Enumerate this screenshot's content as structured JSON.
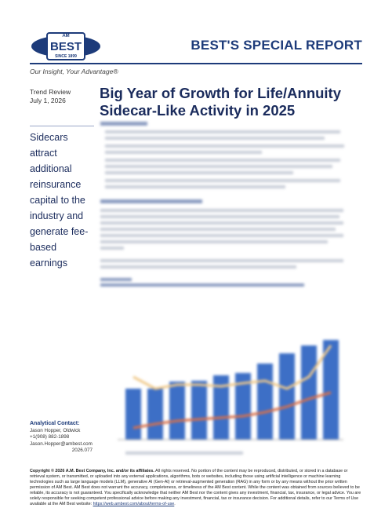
{
  "header": {
    "logo": "BEST",
    "logo_top": "AM",
    "logo_since": "SINCE 1899",
    "report": "BEST'S SPECIAL REPORT",
    "tagline": "Our Insight, Your Advantage®"
  },
  "meta": {
    "section": "Trend Review",
    "date": "July 1, 2026"
  },
  "title": "Big Year of Growth for Life/Annuity Sidecar-Like Activity in 2025",
  "sidebar": "Sidecars attract additional reinsurance capital to the industry and generate fee-based earnings",
  "contact": {
    "heading": "Analytical Contact:",
    "name": "Jason Hopper, Oldwick",
    "phone": "+1(908) 882-1898",
    "email": "Jason.Hopper@ambest.com",
    "code": "2026.077"
  },
  "copyright": {
    "bold": "Copyright © 2026 A.M. Best Company, Inc. and/or its affiliates.",
    "text": " All rights reserved. No portion of the content may be reproduced, distributed, or stored in a database or retrieval system, or transmitted, or uploaded into any external applications, algorithms, bots or websites, including those using artificial intelligence or machine learning technologies such as large language models (LLM), generative AI (Gen-AI) or retrieval-augmented generation (RAG) in any form or by any means without the prior written permission of AM Best. AM Best does not warrant the accuracy, completeness, or timeliness of the AM Best content. While the content was obtained from sources believed to be reliable, its accuracy is not guaranteed. You specifically acknowledge that neither AM Best nor the content gives any investment, financial, tax, insurance, or legal advice. You are solely responsible for seeking competent professional advice before making any investment, financial, tax or insurance decision. For additional details, refer to our Terms of Use available at the AM Best website: ",
    "link": "https://web.ambest.com/about/terms-of-use",
    "end": "."
  }
}
